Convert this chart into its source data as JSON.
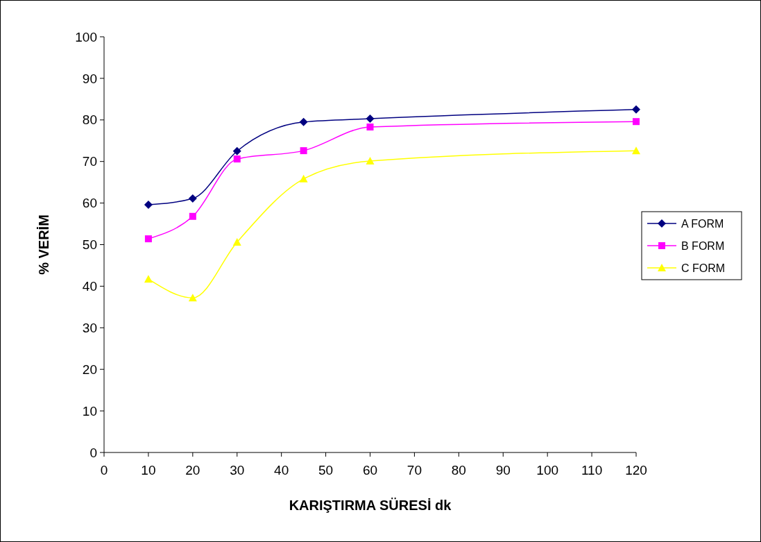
{
  "chart_data": {
    "type": "line",
    "xlabel": "KARIŞTIRMA SÜRESİ dk",
    "ylabel": "% VERİM",
    "xlim": [
      0,
      120
    ],
    "xticks": [
      0,
      10,
      20,
      30,
      40,
      50,
      60,
      70,
      80,
      90,
      100,
      110,
      120
    ],
    "ylim": [
      0,
      100
    ],
    "yticks": [
      0,
      10,
      20,
      30,
      40,
      50,
      60,
      70,
      80,
      90,
      100
    ],
    "x": [
      10,
      20,
      30,
      45,
      60,
      120
    ],
    "series": [
      {
        "name": "A FORM",
        "color": "#000080",
        "marker": "diamond",
        "values": [
          59.6,
          61.1,
          72.5,
          79.5,
          80.3,
          82.5
        ]
      },
      {
        "name": "B FORM",
        "color": "#ff00ff",
        "marker": "square",
        "values": [
          51.4,
          56.8,
          70.6,
          72.6,
          78.3,
          79.6
        ]
      },
      {
        "name": "C FORM",
        "color": "#ffff00",
        "marker": "triangle",
        "values": [
          41.7,
          37.2,
          50.6,
          65.8,
          70.1,
          72.6
        ]
      }
    ],
    "legend": "right",
    "grid": false,
    "line_style": "solid"
  }
}
